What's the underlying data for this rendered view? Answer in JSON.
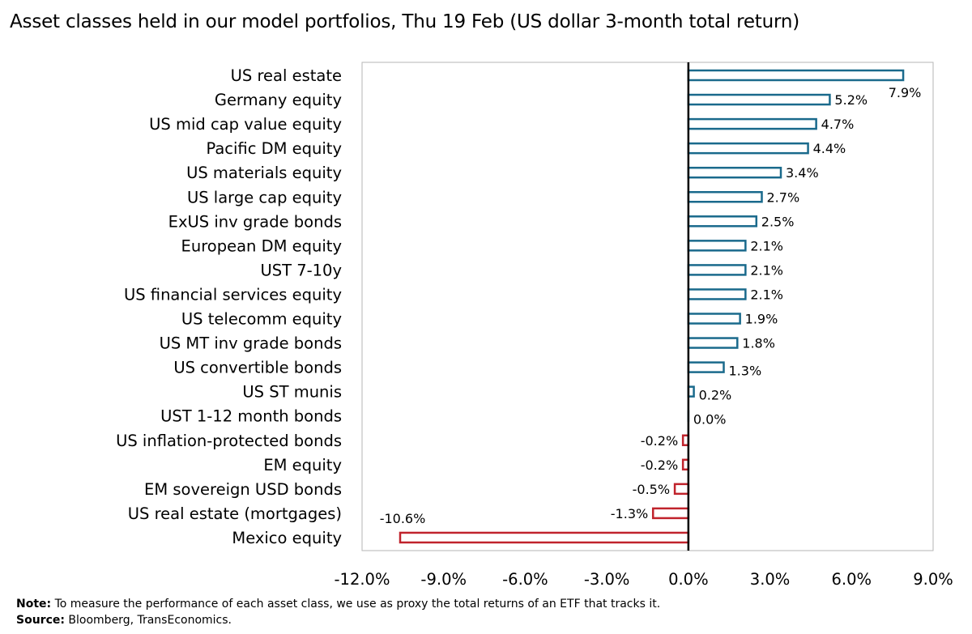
{
  "title": "Asset classes held in our model portfolios, Thu 19 Feb (US dollar 3-month total return)",
  "footer": {
    "note_label": "Note:",
    "note_text": " To measure the performance of each asset class, we use as proxy the total returns of an ETF that tracks it.",
    "source_label": "Source:",
    "source_text": " Bloomberg, TransEconomics."
  },
  "colors": {
    "positive": "#1a6a8c",
    "negative": "#c0232c",
    "axis": "#000000",
    "frame": "#b5b5b5"
  },
  "chart_data": {
    "type": "bar",
    "orientation": "horizontal",
    "title": "Asset classes held in our model portfolios, Thu 19 Feb (US dollar 3-month total return)",
    "categories": [
      "US real estate",
      "Germany equity",
      "US mid cap value equity",
      "Pacific DM equity",
      "US materials equity",
      "US large cap equity",
      "ExUS inv grade bonds",
      "European DM equity",
      "UST 7-10y",
      "US financial services equity",
      "US telecomm equity",
      "US MT inv grade bonds",
      "US convertible bonds",
      "US ST munis",
      "UST  1-12 month bonds",
      "US inflation-protected bonds",
      "EM equity",
      "EM sovereign USD bonds",
      "US real estate (mortgages)",
      "Mexico equity"
    ],
    "values": [
      7.9,
      5.2,
      4.7,
      4.4,
      3.4,
      2.7,
      2.5,
      2.1,
      2.1,
      2.1,
      1.9,
      1.8,
      1.3,
      0.2,
      0.0,
      -0.2,
      -0.2,
      -0.5,
      -1.3,
      -10.6
    ],
    "data_labels": [
      "7.9%",
      "5.2%",
      "4.7%",
      "4.4%",
      "3.4%",
      "2.7%",
      "2.5%",
      "2.1%",
      "2.1%",
      "2.1%",
      "1.9%",
      "1.8%",
      "1.3%",
      "0.2%",
      "0.0%",
      "-0.2%",
      "-0.2%",
      "-0.5%",
      "-1.3%",
      "-10.6%"
    ],
    "xlim": [
      -12,
      9
    ],
    "xticks": [
      -12,
      -9,
      -6,
      -3,
      0,
      3,
      6,
      9
    ],
    "xtick_labels": [
      "-12.0%",
      "-9.0%",
      "-6.0%",
      "-3.0%",
      "0.0%",
      "3.0%",
      "6.0%",
      "9.0%"
    ],
    "xlabel": "",
    "ylabel": "",
    "grid": false,
    "legend": "none"
  }
}
